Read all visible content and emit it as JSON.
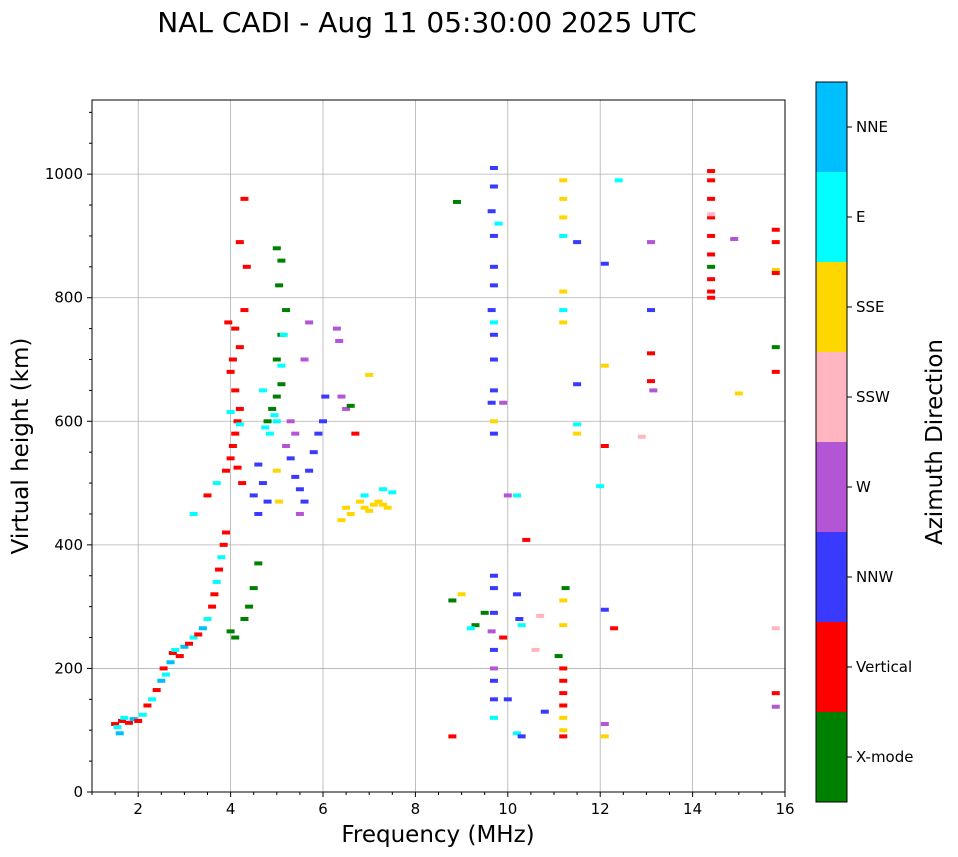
{
  "chart_data": {
    "type": "scatter",
    "title": "NAL CADI - Aug 11 05:30:00 2025 UTC",
    "xlabel": "Frequency (MHz)",
    "ylabel": "Virtual height (km)",
    "xlim": [
      1,
      16
    ],
    "ylim": [
      0,
      1120
    ],
    "xticks": [
      2,
      4,
      6,
      8,
      10,
      12,
      14,
      16
    ],
    "yticks": [
      0,
      200,
      400,
      600,
      800,
      1000
    ],
    "grid": true,
    "colorbar": {
      "label": "Azimuth Direction",
      "categories": [
        {
          "name": "X-mode",
          "color": "#008000"
        },
        {
          "name": "Vertical",
          "color": "#ff0000"
        },
        {
          "name": "NNW",
          "color": "#3a3aff"
        },
        {
          "name": "W",
          "color": "#b455d6"
        },
        {
          "name": "SSW",
          "color": "#ffb6c1"
        },
        {
          "name": "SSE",
          "color": "#ffd700"
        },
        {
          "name": "E",
          "color": "#00ffff"
        },
        {
          "name": "NNE",
          "color": "#00bfff"
        }
      ]
    },
    "points": [
      [
        1.5,
        110,
        1
      ],
      [
        1.55,
        105,
        6
      ],
      [
        1.6,
        95,
        7
      ],
      [
        1.65,
        115,
        1
      ],
      [
        1.7,
        120,
        6
      ],
      [
        1.8,
        112,
        1
      ],
      [
        1.9,
        118,
        7
      ],
      [
        2.0,
        115,
        1
      ],
      [
        2.1,
        125,
        6
      ],
      [
        2.2,
        140,
        1
      ],
      [
        2.3,
        150,
        6
      ],
      [
        2.4,
        165,
        1
      ],
      [
        2.5,
        180,
        7
      ],
      [
        2.55,
        200,
        1
      ],
      [
        2.6,
        190,
        6
      ],
      [
        2.7,
        210,
        7
      ],
      [
        2.75,
        225,
        1
      ],
      [
        2.8,
        230,
        6
      ],
      [
        2.9,
        220,
        1
      ],
      [
        3.0,
        235,
        7
      ],
      [
        3.1,
        240,
        1
      ],
      [
        3.2,
        250,
        6
      ],
      [
        3.3,
        255,
        1
      ],
      [
        3.4,
        265,
        7
      ],
      [
        3.5,
        280,
        6
      ],
      [
        3.6,
        300,
        1
      ],
      [
        3.65,
        320,
        1
      ],
      [
        3.7,
        340,
        6
      ],
      [
        3.75,
        360,
        1
      ],
      [
        3.8,
        380,
        6
      ],
      [
        3.85,
        400,
        1
      ],
      [
        3.9,
        420,
        1
      ],
      [
        3.2,
        450,
        6
      ],
      [
        3.5,
        480,
        1
      ],
      [
        3.7,
        500,
        6
      ],
      [
        3.9,
        520,
        1
      ],
      [
        4.0,
        260,
        0
      ],
      [
        4.1,
        250,
        0
      ],
      [
        4.3,
        280,
        0
      ],
      [
        4.4,
        300,
        0
      ],
      [
        4.5,
        330,
        0
      ],
      [
        4.6,
        370,
        0
      ],
      [
        4.0,
        540,
        1
      ],
      [
        4.05,
        560,
        1
      ],
      [
        4.1,
        580,
        1
      ],
      [
        4.15,
        600,
        1
      ],
      [
        4.2,
        620,
        1
      ],
      [
        4.1,
        650,
        1
      ],
      [
        4.0,
        680,
        1
      ],
      [
        4.05,
        700,
        1
      ],
      [
        4.2,
        720,
        1
      ],
      [
        4.1,
        750,
        1
      ],
      [
        4.3,
        780,
        1
      ],
      [
        4.35,
        850,
        1
      ],
      [
        4.3,
        960,
        1
      ],
      [
        4.2,
        890,
        1
      ],
      [
        3.95,
        760,
        1
      ],
      [
        4.0,
        615,
        6
      ],
      [
        4.2,
        595,
        6
      ],
      [
        4.25,
        500,
        1
      ],
      [
        4.15,
        525,
        1
      ],
      [
        4.8,
        600,
        0
      ],
      [
        4.9,
        620,
        0
      ],
      [
        5.0,
        640,
        0
      ],
      [
        5.1,
        660,
        0
      ],
      [
        5.0,
        700,
        0
      ],
      [
        5.1,
        740,
        0
      ],
      [
        5.2,
        780,
        0
      ],
      [
        5.05,
        820,
        0
      ],
      [
        5.1,
        860,
        0
      ],
      [
        5.0,
        880,
        0
      ],
      [
        4.85,
        580,
        6
      ],
      [
        4.95,
        610,
        6
      ],
      [
        5.1,
        690,
        6
      ],
      [
        5.15,
        740,
        6
      ],
      [
        4.7,
        650,
        6
      ],
      [
        4.75,
        590,
        6
      ],
      [
        5.0,
        600,
        6
      ],
      [
        4.6,
        530,
        2
      ],
      [
        4.7,
        500,
        2
      ],
      [
        4.8,
        470,
        2
      ],
      [
        4.5,
        480,
        2
      ],
      [
        4.6,
        450,
        2
      ],
      [
        5.3,
        540,
        2
      ],
      [
        5.4,
        510,
        2
      ],
      [
        5.5,
        490,
        2
      ],
      [
        5.6,
        470,
        2
      ],
      [
        5.7,
        520,
        2
      ],
      [
        5.8,
        550,
        2
      ],
      [
        5.9,
        580,
        2
      ],
      [
        6.0,
        600,
        2
      ],
      [
        6.05,
        640,
        2
      ],
      [
        5.2,
        560,
        3
      ],
      [
        5.3,
        600,
        3
      ],
      [
        5.4,
        580,
        3
      ],
      [
        5.5,
        450,
        3
      ],
      [
        5.6,
        700,
        3
      ],
      [
        5.7,
        760,
        3
      ],
      [
        6.3,
        750,
        3
      ],
      [
        6.35,
        730,
        3
      ],
      [
        6.4,
        640,
        3
      ],
      [
        6.5,
        620,
        3
      ],
      [
        5.0,
        520,
        5
      ],
      [
        5.05,
        470,
        5
      ],
      [
        6.4,
        440,
        5
      ],
      [
        6.5,
        460,
        5
      ],
      [
        6.6,
        450,
        5
      ],
      [
        6.8,
        470,
        5
      ],
      [
        6.9,
        460,
        5
      ],
      [
        7.0,
        455,
        5
      ],
      [
        7.1,
        465,
        5
      ],
      [
        7.2,
        470,
        5
      ],
      [
        7.3,
        465,
        5
      ],
      [
        7.4,
        460,
        5
      ],
      [
        7.0,
        675,
        5
      ],
      [
        6.9,
        480,
        6
      ],
      [
        7.3,
        490,
        6
      ],
      [
        7.5,
        485,
        6
      ],
      [
        6.7,
        580,
        1
      ],
      [
        6.6,
        625,
        0
      ],
      [
        9.7,
        1010,
        2
      ],
      [
        9.7,
        980,
        2
      ],
      [
        9.65,
        940,
        2
      ],
      [
        9.7,
        900,
        2
      ],
      [
        9.7,
        850,
        2
      ],
      [
        9.7,
        820,
        2
      ],
      [
        9.65,
        780,
        2
      ],
      [
        9.7,
        760,
        6
      ],
      [
        9.7,
        740,
        2
      ],
      [
        9.7,
        700,
        2
      ],
      [
        9.7,
        650,
        2
      ],
      [
        9.65,
        630,
        2
      ],
      [
        9.7,
        600,
        5
      ],
      [
        9.7,
        580,
        2
      ],
      [
        9.8,
        920,
        6
      ],
      [
        9.9,
        630,
        3
      ],
      [
        8.9,
        955,
        0
      ],
      [
        10.0,
        480,
        3
      ],
      [
        10.2,
        480,
        6
      ],
      [
        9.7,
        350,
        2
      ],
      [
        9.7,
        330,
        2
      ],
      [
        9.7,
        290,
        2
      ],
      [
        9.65,
        260,
        3
      ],
      [
        9.7,
        230,
        2
      ],
      [
        9.7,
        200,
        3
      ],
      [
        9.7,
        180,
        2
      ],
      [
        9.7,
        150,
        2
      ],
      [
        9.7,
        120,
        6
      ],
      [
        9.3,
        270,
        0
      ],
      [
        9.0,
        320,
        5
      ],
      [
        8.8,
        310,
        0
      ],
      [
        9.2,
        265,
        6
      ],
      [
        9.5,
        290,
        0
      ],
      [
        9.9,
        250,
        1
      ],
      [
        10.0,
        150,
        2
      ],
      [
        10.2,
        320,
        2
      ],
      [
        10.25,
        280,
        2
      ],
      [
        10.3,
        270,
        6
      ],
      [
        10.4,
        408,
        1
      ],
      [
        10.6,
        230,
        4
      ],
      [
        10.7,
        285,
        4
      ],
      [
        10.8,
        130,
        2
      ],
      [
        10.2,
        95,
        6
      ],
      [
        10.3,
        90,
        2
      ],
      [
        8.8,
        90,
        1
      ],
      [
        11.2,
        990,
        5
      ],
      [
        11.2,
        960,
        5
      ],
      [
        11.2,
        930,
        5
      ],
      [
        11.2,
        900,
        6
      ],
      [
        11.2,
        810,
        5
      ],
      [
        11.2,
        780,
        6
      ],
      [
        11.2,
        760,
        5
      ],
      [
        11.25,
        330,
        0
      ],
      [
        11.2,
        310,
        5
      ],
      [
        11.2,
        270,
        5
      ],
      [
        11.2,
        200,
        1
      ],
      [
        11.2,
        180,
        1
      ],
      [
        11.2,
        160,
        1
      ],
      [
        11.2,
        140,
        1
      ],
      [
        11.2,
        120,
        5
      ],
      [
        11.2,
        100,
        5
      ],
      [
        11.2,
        90,
        1
      ],
      [
        11.1,
        220,
        0
      ],
      [
        11.5,
        890,
        2
      ],
      [
        11.5,
        660,
        2
      ],
      [
        11.5,
        595,
        6
      ],
      [
        11.5,
        580,
        5
      ],
      [
        12.4,
        990,
        6
      ],
      [
        12.1,
        855,
        2
      ],
      [
        12.1,
        690,
        5
      ],
      [
        12.0,
        495,
        6
      ],
      [
        12.1,
        560,
        1
      ],
      [
        12.1,
        295,
        2
      ],
      [
        12.3,
        265,
        1
      ],
      [
        12.1,
        110,
        3
      ],
      [
        12.1,
        90,
        5
      ],
      [
        13.1,
        890,
        3
      ],
      [
        13.1,
        780,
        2
      ],
      [
        13.1,
        710,
        1
      ],
      [
        13.1,
        665,
        1
      ],
      [
        13.15,
        650,
        3
      ],
      [
        12.9,
        575,
        4
      ],
      [
        14.4,
        1005,
        1
      ],
      [
        14.4,
        990,
        1
      ],
      [
        14.4,
        960,
        1
      ],
      [
        14.4,
        930,
        1
      ],
      [
        14.4,
        900,
        1
      ],
      [
        14.4,
        870,
        1
      ],
      [
        14.4,
        850,
        0
      ],
      [
        14.4,
        830,
        1
      ],
      [
        14.4,
        810,
        1
      ],
      [
        14.4,
        800,
        1
      ],
      [
        14.4,
        935,
        4
      ],
      [
        14.9,
        895,
        3
      ],
      [
        15.0,
        645,
        5
      ],
      [
        15.8,
        910,
        1
      ],
      [
        15.8,
        890,
        1
      ],
      [
        15.8,
        845,
        5
      ],
      [
        15.8,
        840,
        1
      ],
      [
        15.8,
        720,
        0
      ],
      [
        15.8,
        680,
        1
      ],
      [
        15.8,
        265,
        4
      ],
      [
        15.8,
        160,
        1
      ],
      [
        15.8,
        138,
        3
      ]
    ]
  }
}
